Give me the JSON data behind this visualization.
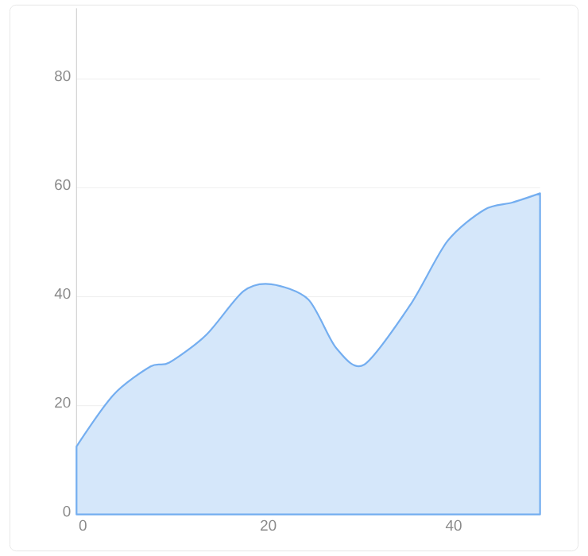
{
  "chart_data": {
    "type": "area",
    "x": [
      0,
      4,
      8,
      10,
      14,
      18,
      21,
      25,
      28,
      31,
      36,
      40,
      44,
      47,
      50
    ],
    "values": [
      12.5,
      22,
      27.2,
      27.9,
      33,
      41,
      42.3,
      39.5,
      30.6,
      27.5,
      38.5,
      50.2,
      56,
      57.3,
      59
    ],
    "color": "#74aef0",
    "xlim": [
      0,
      50
    ],
    "ylim": [
      0,
      93
    ],
    "xticks": [
      0,
      20,
      40
    ],
    "yticks": [
      0,
      20,
      40,
      60,
      80
    ],
    "grid": "y",
    "marker": "none",
    "line_style": "solid"
  }
}
